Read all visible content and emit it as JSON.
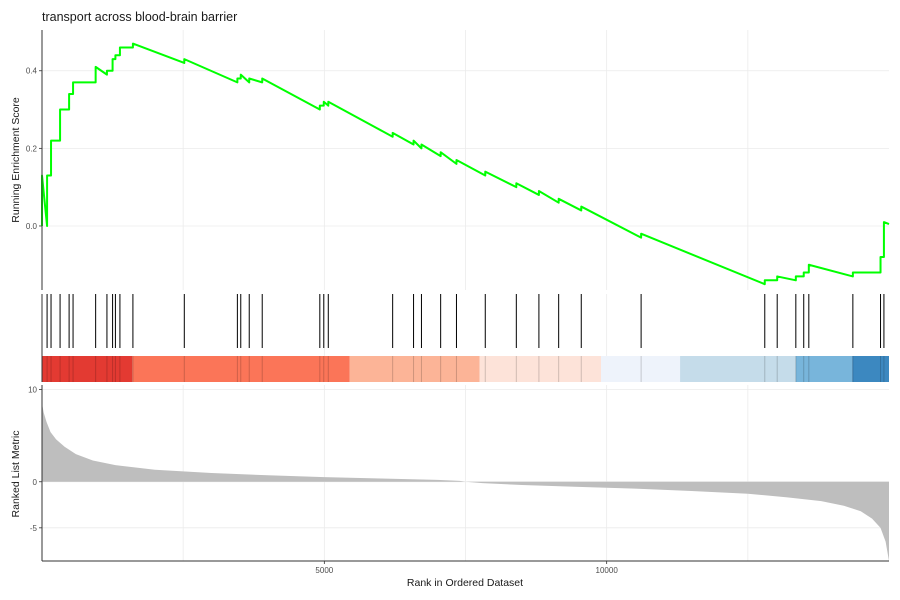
{
  "chart_data": {
    "type": "line",
    "title": "transport across blood-brain barrier",
    "n_genes": 15000,
    "x_axis": {
      "label": "Rank in Ordered Dataset",
      "ticks": [
        5000,
        10000
      ],
      "range": [
        0,
        15000
      ]
    },
    "panels": [
      {
        "name": "running-enrichment",
        "ylabel": "Running Enrichment Score",
        "ylim": [
          -0.165,
          0.505
        ],
        "yticks": [
          0.0,
          0.2,
          0.4
        ],
        "line_color": "#00ff00",
        "hits": [
          0,
          90,
          160,
          320,
          480,
          550,
          950,
          1150,
          1250,
          1300,
          1380,
          1610,
          2520,
          3460,
          3520,
          3670,
          3900,
          4920,
          4990,
          5070,
          6210,
          6580,
          6720,
          7060,
          7340,
          7850,
          8400,
          8800,
          9150,
          9550,
          10610,
          12800,
          13020,
          13350,
          13490,
          13580,
          14360,
          14850,
          14910
        ],
        "es_at_hits": [
          0.0,
          0.13,
          0.22,
          0.3,
          0.34,
          0.37,
          0.41,
          0.4,
          0.43,
          0.44,
          0.46,
          0.47,
          0.43,
          0.38,
          0.39,
          0.38,
          0.38,
          0.31,
          0.32,
          0.32,
          0.24,
          0.22,
          0.21,
          0.19,
          0.17,
          0.14,
          0.11,
          0.09,
          0.07,
          0.05,
          -0.02,
          -0.14,
          -0.13,
          -0.13,
          -0.12,
          -0.1,
          -0.12,
          -0.08,
          0.01
        ],
        "end_value": 0.005
      },
      {
        "name": "hit-positions",
        "color_band": [
          "#e33a32",
          "#fb7558",
          "#fcb497",
          "#fde3d9",
          "#eef3fb",
          "#c5dcea",
          "#78b5db",
          "#3c88c0"
        ],
        "color_band_breaks": [
          0,
          1600,
          5450,
          7750,
          9900,
          11300,
          13350,
          14350,
          15000
        ]
      },
      {
        "name": "ranked-list-metric",
        "ylabel": "Ranked List Metric",
        "type": "area",
        "ylim": [
          -8.6,
          10.5
        ],
        "yticks": [
          -5,
          0,
          10
        ],
        "fill_color": "#bebebe",
        "x": [
          0,
          30,
          80,
          150,
          250,
          400,
          600,
          900,
          1300,
          2000,
          3000,
          4000,
          5000,
          6000,
          7000,
          7400,
          7500,
          7800,
          8500,
          9500,
          10500,
          11500,
          12500,
          13200,
          13800,
          14200,
          14500,
          14700,
          14850,
          14940,
          15000
        ],
        "values": [
          8.5,
          7.5,
          6.5,
          5.4,
          4.6,
          3.8,
          3.0,
          2.3,
          1.8,
          1.3,
          0.95,
          0.7,
          0.5,
          0.35,
          0.2,
          0.1,
          0.0,
          -0.15,
          -0.35,
          -0.55,
          -0.75,
          -1.0,
          -1.3,
          -1.7,
          -2.1,
          -2.6,
          -3.2,
          -4.0,
          -5.0,
          -6.5,
          -8.6
        ]
      }
    ]
  }
}
